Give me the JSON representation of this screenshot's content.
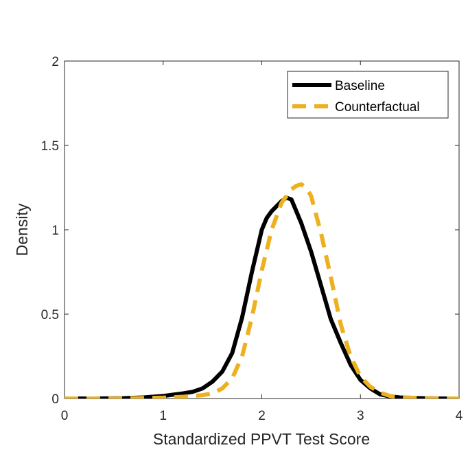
{
  "chart_data": {
    "type": "line",
    "xlabel": "Standardized PPVT Test Score",
    "ylabel": "Density",
    "xlim": [
      0,
      4
    ],
    "ylim": [
      0,
      2
    ],
    "xticks": [
      0,
      1,
      2,
      3,
      4
    ],
    "yticks": [
      0,
      0.5,
      1,
      1.5,
      2
    ],
    "xtick_labels": [
      "0",
      "1",
      "2",
      "3",
      "4"
    ],
    "ytick_labels": [
      "0",
      "0.5",
      "1",
      "1.5",
      "2"
    ],
    "grid": false,
    "legend_position": "top-right",
    "series": [
      {
        "name": "Baseline",
        "color": "#000000",
        "style": "solid",
        "x": [
          0,
          0.3,
          0.6,
          0.8,
          1.0,
          1.2,
          1.3,
          1.4,
          1.5,
          1.6,
          1.7,
          1.8,
          1.9,
          2.0,
          2.05,
          2.1,
          2.2,
          2.25,
          2.3,
          2.4,
          2.5,
          2.6,
          2.7,
          2.8,
          2.9,
          3.0,
          3.1,
          3.2,
          3.3,
          3.4,
          3.6,
          3.8,
          4.0
        ],
        "y": [
          0,
          0,
          0.002,
          0.006,
          0.015,
          0.03,
          0.04,
          0.06,
          0.1,
          0.16,
          0.27,
          0.48,
          0.75,
          1.0,
          1.07,
          1.11,
          1.17,
          1.19,
          1.18,
          1.04,
          0.87,
          0.67,
          0.47,
          0.33,
          0.2,
          0.11,
          0.06,
          0.025,
          0.012,
          0.006,
          0.002,
          0,
          0
        ]
      },
      {
        "name": "Counterfactual",
        "color": "#EDB120",
        "style": "dashed",
        "x": [
          0,
          0.5,
          1.0,
          1.2,
          1.4,
          1.5,
          1.6,
          1.7,
          1.8,
          1.9,
          2.0,
          2.1,
          2.2,
          2.3,
          2.35,
          2.4,
          2.45,
          2.5,
          2.6,
          2.7,
          2.8,
          2.9,
          3.0,
          3.1,
          3.2,
          3.3,
          3.4,
          3.6,
          3.8,
          4.0
        ],
        "y": [
          0,
          0,
          0.005,
          0.01,
          0.02,
          0.03,
          0.06,
          0.12,
          0.25,
          0.48,
          0.76,
          1.0,
          1.16,
          1.24,
          1.26,
          1.27,
          1.25,
          1.2,
          0.98,
          0.72,
          0.44,
          0.25,
          0.13,
          0.07,
          0.035,
          0.015,
          0.008,
          0.002,
          0,
          0
        ]
      }
    ]
  }
}
